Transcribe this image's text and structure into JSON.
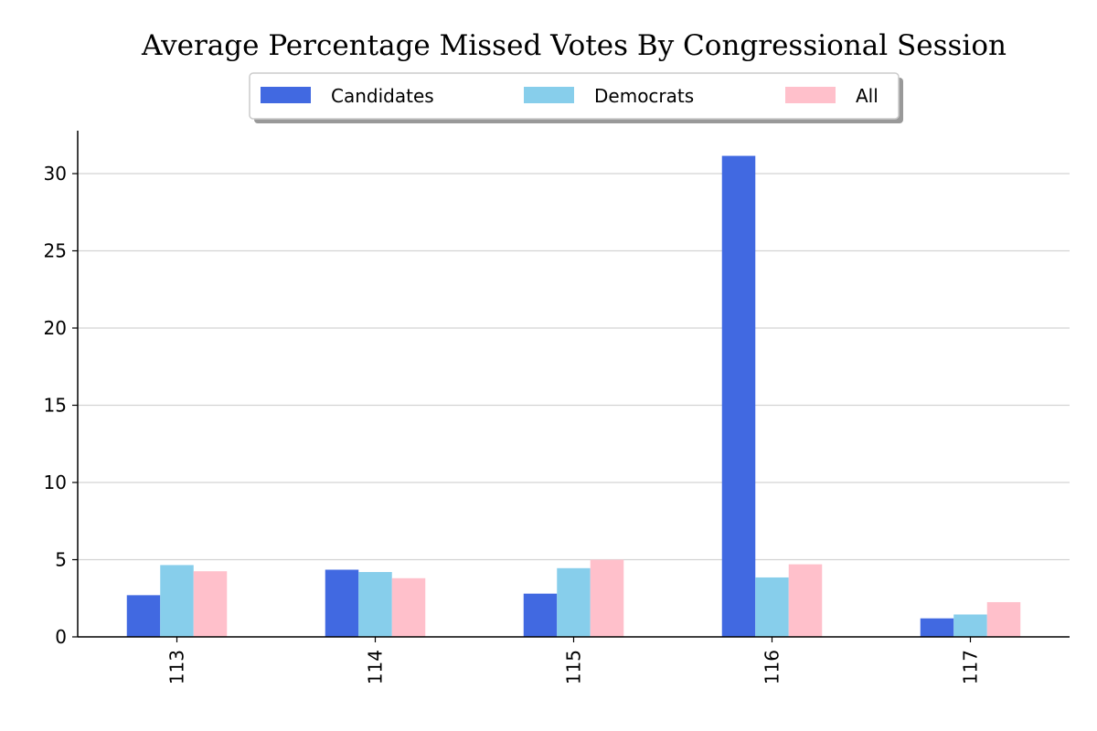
{
  "chart_data": {
    "type": "bar",
    "title": "Average Percentage Missed Votes By Congressional Session",
    "xlabel": "",
    "ylabel": "",
    "categories": [
      "113",
      "114",
      "115",
      "116",
      "117"
    ],
    "series": [
      {
        "name": "Candidates",
        "color": "#4169e1",
        "values": [
          2.7,
          4.35,
          2.8,
          31.15,
          1.2
        ]
      },
      {
        "name": "Democrats",
        "color": "#87ceeb",
        "values": [
          4.65,
          4.2,
          4.45,
          3.85,
          1.45
        ]
      },
      {
        "name": "All",
        "color": "#ffc0cb",
        "values": [
          4.25,
          3.8,
          5.0,
          4.7,
          2.25
        ]
      }
    ],
    "yticks": [
      "0",
      "5",
      "10",
      "15",
      "20",
      "25",
      "30"
    ],
    "ylim": [
      0,
      32.7
    ],
    "grid": "horizontal",
    "legend": "top-center"
  }
}
